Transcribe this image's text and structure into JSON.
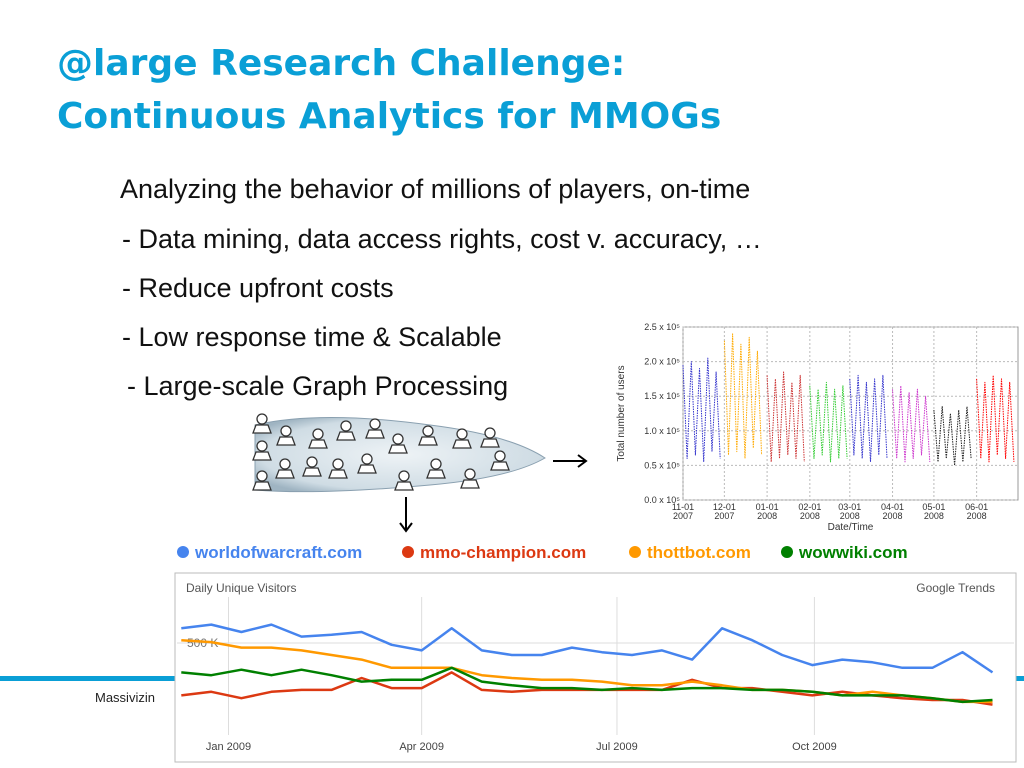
{
  "slide": {
    "title": [
      "@large Research Challenge:",
      "Continuous Analytics for MMOGs"
    ],
    "bullets": [
      "Analyzing the behavior of millions of players, on-time",
      "- Data mining, data access rights, cost v. accuracy, …",
      "- Reduce upfront costs",
      "- Low response time & Scalable",
      "- Large-scale Graph Processing"
    ],
    "footer": "Massivizin"
  },
  "chart_data": [
    {
      "type": "line",
      "xlabel": "Date/Time",
      "ylabel": "Total number of users",
      "grid": true,
      "xlim": [
        "2007-11-01",
        "2008-07-01"
      ],
      "ylim": [
        0,
        250000
      ],
      "xticks": [
        {
          "value": "2007-11-01",
          "label": "11-01\n2007"
        },
        {
          "value": "2007-12-01",
          "label": "12-01\n2007"
        },
        {
          "value": "2008-01-01",
          "label": "01-01\n2008"
        },
        {
          "value": "2008-02-01",
          "label": "02-01\n2008"
        },
        {
          "value": "2008-03-01",
          "label": "03-01\n2008"
        },
        {
          "value": "2008-04-01",
          "label": "04-01\n2008"
        },
        {
          "value": "2008-05-01",
          "label": "05-01\n2008"
        },
        {
          "value": "2008-06-01",
          "label": "06-01\n2008"
        }
      ],
      "yticks": [
        {
          "value": 0,
          "label": "0.0 x 10⁵"
        },
        {
          "value": 50000,
          "label": "0.5 x 10⁵"
        },
        {
          "value": 100000,
          "label": "1.0 x 10⁵"
        },
        {
          "value": 150000,
          "label": "1.5 x 10⁵"
        },
        {
          "value": 200000,
          "label": "2.0 x 10⁵"
        },
        {
          "value": 250000,
          "label": "2.5 x 10⁵"
        }
      ],
      "series": [
        {
          "color": "#3333cc",
          "x": [
            "2007-11-01",
            "2007-11-04",
            "2007-11-07",
            "2007-11-10",
            "2007-11-13",
            "2007-11-16",
            "2007-11-19",
            "2007-11-22",
            "2007-11-25",
            "2007-11-28"
          ],
          "values": [
            195000,
            60000,
            200000,
            65000,
            190000,
            55000,
            205000,
            70000,
            185000,
            60000
          ]
        },
        {
          "color": "#ffaa00",
          "x": [
            "2007-12-01",
            "2007-12-04",
            "2007-12-07",
            "2007-12-10",
            "2007-12-13",
            "2007-12-16",
            "2007-12-19",
            "2007-12-22",
            "2007-12-25",
            "2007-12-28"
          ],
          "values": [
            230000,
            65000,
            240000,
            70000,
            225000,
            60000,
            235000,
            75000,
            215000,
            65000
          ]
        },
        {
          "color": "#cc3333",
          "x": [
            "2008-01-01",
            "2008-01-04",
            "2008-01-07",
            "2008-01-10",
            "2008-01-13",
            "2008-01-16",
            "2008-01-19",
            "2008-01-22",
            "2008-01-25",
            "2008-01-28"
          ],
          "values": [
            180000,
            55000,
            175000,
            60000,
            185000,
            65000,
            170000,
            60000,
            180000,
            55000
          ]
        },
        {
          "color": "#33cc33",
          "x": [
            "2008-02-01",
            "2008-02-04",
            "2008-02-07",
            "2008-02-10",
            "2008-02-13",
            "2008-02-16",
            "2008-02-19",
            "2008-02-22",
            "2008-02-25",
            "2008-02-28"
          ],
          "values": [
            165000,
            60000,
            160000,
            65000,
            170000,
            55000,
            160000,
            60000,
            165000,
            60000
          ]
        },
        {
          "color": "#3333cc",
          "x": [
            "2008-03-01",
            "2008-03-04",
            "2008-03-07",
            "2008-03-10",
            "2008-03-13",
            "2008-03-16",
            "2008-03-19",
            "2008-03-22",
            "2008-03-25",
            "2008-03-28"
          ],
          "values": [
            175000,
            65000,
            180000,
            60000,
            170000,
            55000,
            175000,
            65000,
            180000,
            60000
          ]
        },
        {
          "color": "#cc33cc",
          "x": [
            "2008-04-01",
            "2008-04-04",
            "2008-04-07",
            "2008-04-10",
            "2008-04-13",
            "2008-04-16",
            "2008-04-19",
            "2008-04-22",
            "2008-04-25",
            "2008-04-28"
          ],
          "values": [
            160000,
            60000,
            165000,
            55000,
            155000,
            60000,
            160000,
            65000,
            150000,
            55000
          ]
        },
        {
          "color": "#222222",
          "x": [
            "2008-05-01",
            "2008-05-04",
            "2008-05-07",
            "2008-05-10",
            "2008-05-13",
            "2008-05-16",
            "2008-05-19",
            "2008-05-22",
            "2008-05-25",
            "2008-05-28"
          ],
          "values": [
            130000,
            55000,
            135000,
            60000,
            125000,
            50000,
            130000,
            55000,
            135000,
            60000
          ]
        },
        {
          "color": "#ff0000",
          "x": [
            "2008-06-01",
            "2008-06-04",
            "2008-06-07",
            "2008-06-10",
            "2008-06-13",
            "2008-06-16",
            "2008-06-19",
            "2008-06-22",
            "2008-06-25",
            "2008-06-28"
          ],
          "values": [
            175000,
            60000,
            170000,
            55000,
            180000,
            65000,
            175000,
            60000,
            170000,
            55000
          ]
        }
      ]
    },
    {
      "type": "line",
      "annotations": [
        "Daily Unique Visitors",
        "Google Trends"
      ],
      "grid": true,
      "xlim": [
        "2008-12-08",
        "2010-01-02"
      ],
      "ylim": [
        0,
        750000
      ],
      "xticks": [
        {
          "value": "2009-01-01",
          "label": "Jan 2009"
        },
        {
          "value": "2009-04-01",
          "label": "Apr 2009"
        },
        {
          "value": "2009-07-01",
          "label": "Jul 2009"
        },
        {
          "value": "2009-10-01",
          "label": "Oct 2009"
        }
      ],
      "yticks": [
        {
          "value": 500000,
          "label": "500 K"
        }
      ],
      "x": [
        "2008-12-10",
        "2008-12-24",
        "2009-01-07",
        "2009-01-21",
        "2009-02-04",
        "2009-02-18",
        "2009-03-04",
        "2009-03-18",
        "2009-04-01",
        "2009-04-15",
        "2009-04-29",
        "2009-05-13",
        "2009-05-27",
        "2009-06-10",
        "2009-06-24",
        "2009-07-08",
        "2009-07-22",
        "2009-08-05",
        "2009-08-19",
        "2009-09-02",
        "2009-09-16",
        "2009-09-30",
        "2009-10-14",
        "2009-10-28",
        "2009-11-11",
        "2009-11-25",
        "2009-12-09",
        "2009-12-23"
      ],
      "series": [
        {
          "name": "worldofwarcraft.com",
          "color": "#4684ee",
          "values": [
            580000,
            600000,
            560000,
            600000,
            535000,
            545000,
            560000,
            490000,
            460000,
            580000,
            460000,
            435000,
            435000,
            475000,
            450000,
            435000,
            460000,
            410000,
            580000,
            515000,
            435000,
            380000,
            410000,
            395000,
            365000,
            365000,
            450000,
            340000
          ]
        },
        {
          "name": "mmo-champion.com",
          "color": "#dc3912",
          "values": [
            215000,
            235000,
            200000,
            235000,
            245000,
            245000,
            310000,
            255000,
            255000,
            340000,
            245000,
            235000,
            245000,
            245000,
            245000,
            245000,
            245000,
            300000,
            255000,
            255000,
            235000,
            215000,
            235000,
            215000,
            200000,
            190000,
            190000,
            165000
          ]
        },
        {
          "name": "thottbot.com",
          "color": "#ff9900",
          "values": [
            515000,
            505000,
            475000,
            475000,
            460000,
            435000,
            410000,
            365000,
            365000,
            365000,
            325000,
            310000,
            300000,
            300000,
            290000,
            270000,
            270000,
            290000,
            270000,
            245000,
            245000,
            235000,
            215000,
            235000,
            215000,
            200000,
            180000,
            180000
          ]
        },
        {
          "name": "wowwiki.com",
          "color": "#008000",
          "values": [
            340000,
            325000,
            355000,
            325000,
            355000,
            325000,
            290000,
            300000,
            300000,
            365000,
            290000,
            270000,
            255000,
            255000,
            245000,
            255000,
            245000,
            255000,
            255000,
            245000,
            245000,
            235000,
            215000,
            215000,
            215000,
            200000,
            180000,
            190000
          ]
        }
      ]
    }
  ]
}
